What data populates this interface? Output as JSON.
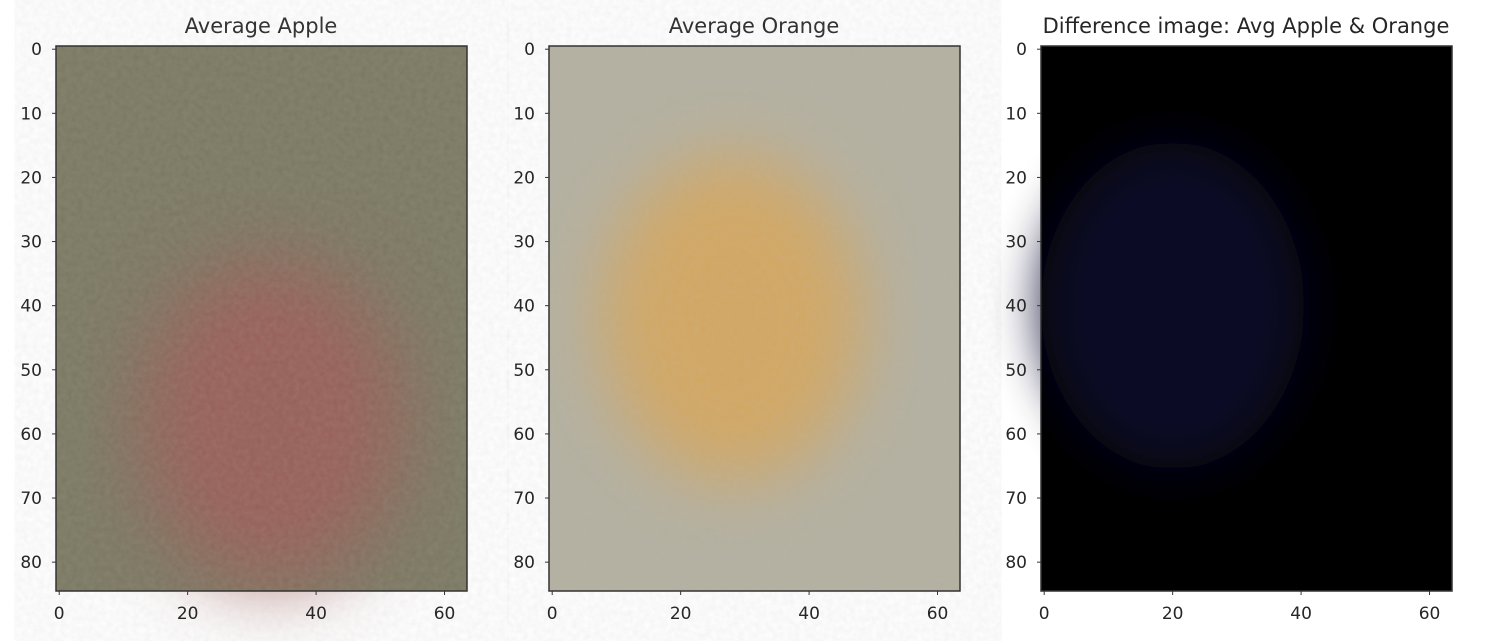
{
  "chart_data": [
    {
      "type": "heatmap",
      "title": "Average Apple",
      "image_shape": [
        85,
        64
      ],
      "xlim": [
        0,
        63
      ],
      "ylim": [
        84,
        0
      ],
      "xticks": [
        0,
        20,
        40,
        60
      ],
      "yticks": [
        0,
        10,
        20,
        30,
        40,
        50,
        60,
        70,
        80
      ],
      "grid": false,
      "base_color": "#7a7760",
      "region_color": "#9c5a55",
      "region_center": {
        "x": 33,
        "y": 58
      },
      "description_colors": {
        "background": "olive-grey",
        "fruit": "dusty red"
      }
    },
    {
      "type": "heatmap",
      "title": "Average Orange",
      "image_shape": [
        85,
        64
      ],
      "xlim": [
        0,
        63
      ],
      "ylim": [
        84,
        0
      ],
      "xticks": [
        0,
        20,
        40,
        60
      ],
      "yticks": [
        0,
        10,
        20,
        30,
        40,
        50,
        60,
        70,
        80
      ],
      "grid": false,
      "base_color": "#b3b0a0",
      "region_color": "#d9a555",
      "region_center": {
        "x": 28,
        "y": 42
      },
      "description_colors": {
        "background": "light grey",
        "fruit": "orange"
      }
    },
    {
      "type": "heatmap",
      "title": "Difference image: Avg Apple & Orange",
      "image_shape": [
        85,
        64
      ],
      "xlim": [
        0,
        63
      ],
      "ylim": [
        84,
        0
      ],
      "xticks": [
        0,
        20,
        40,
        60
      ],
      "yticks": [
        0,
        10,
        20,
        30,
        40,
        50,
        60,
        70,
        80
      ],
      "grid": false,
      "base_color": "#000000",
      "region_color": "#0a0a2a",
      "region_center": {
        "x": 20,
        "y": 40
      },
      "description_colors": {
        "background": "black",
        "fruit": "very dark blue"
      }
    }
  ]
}
